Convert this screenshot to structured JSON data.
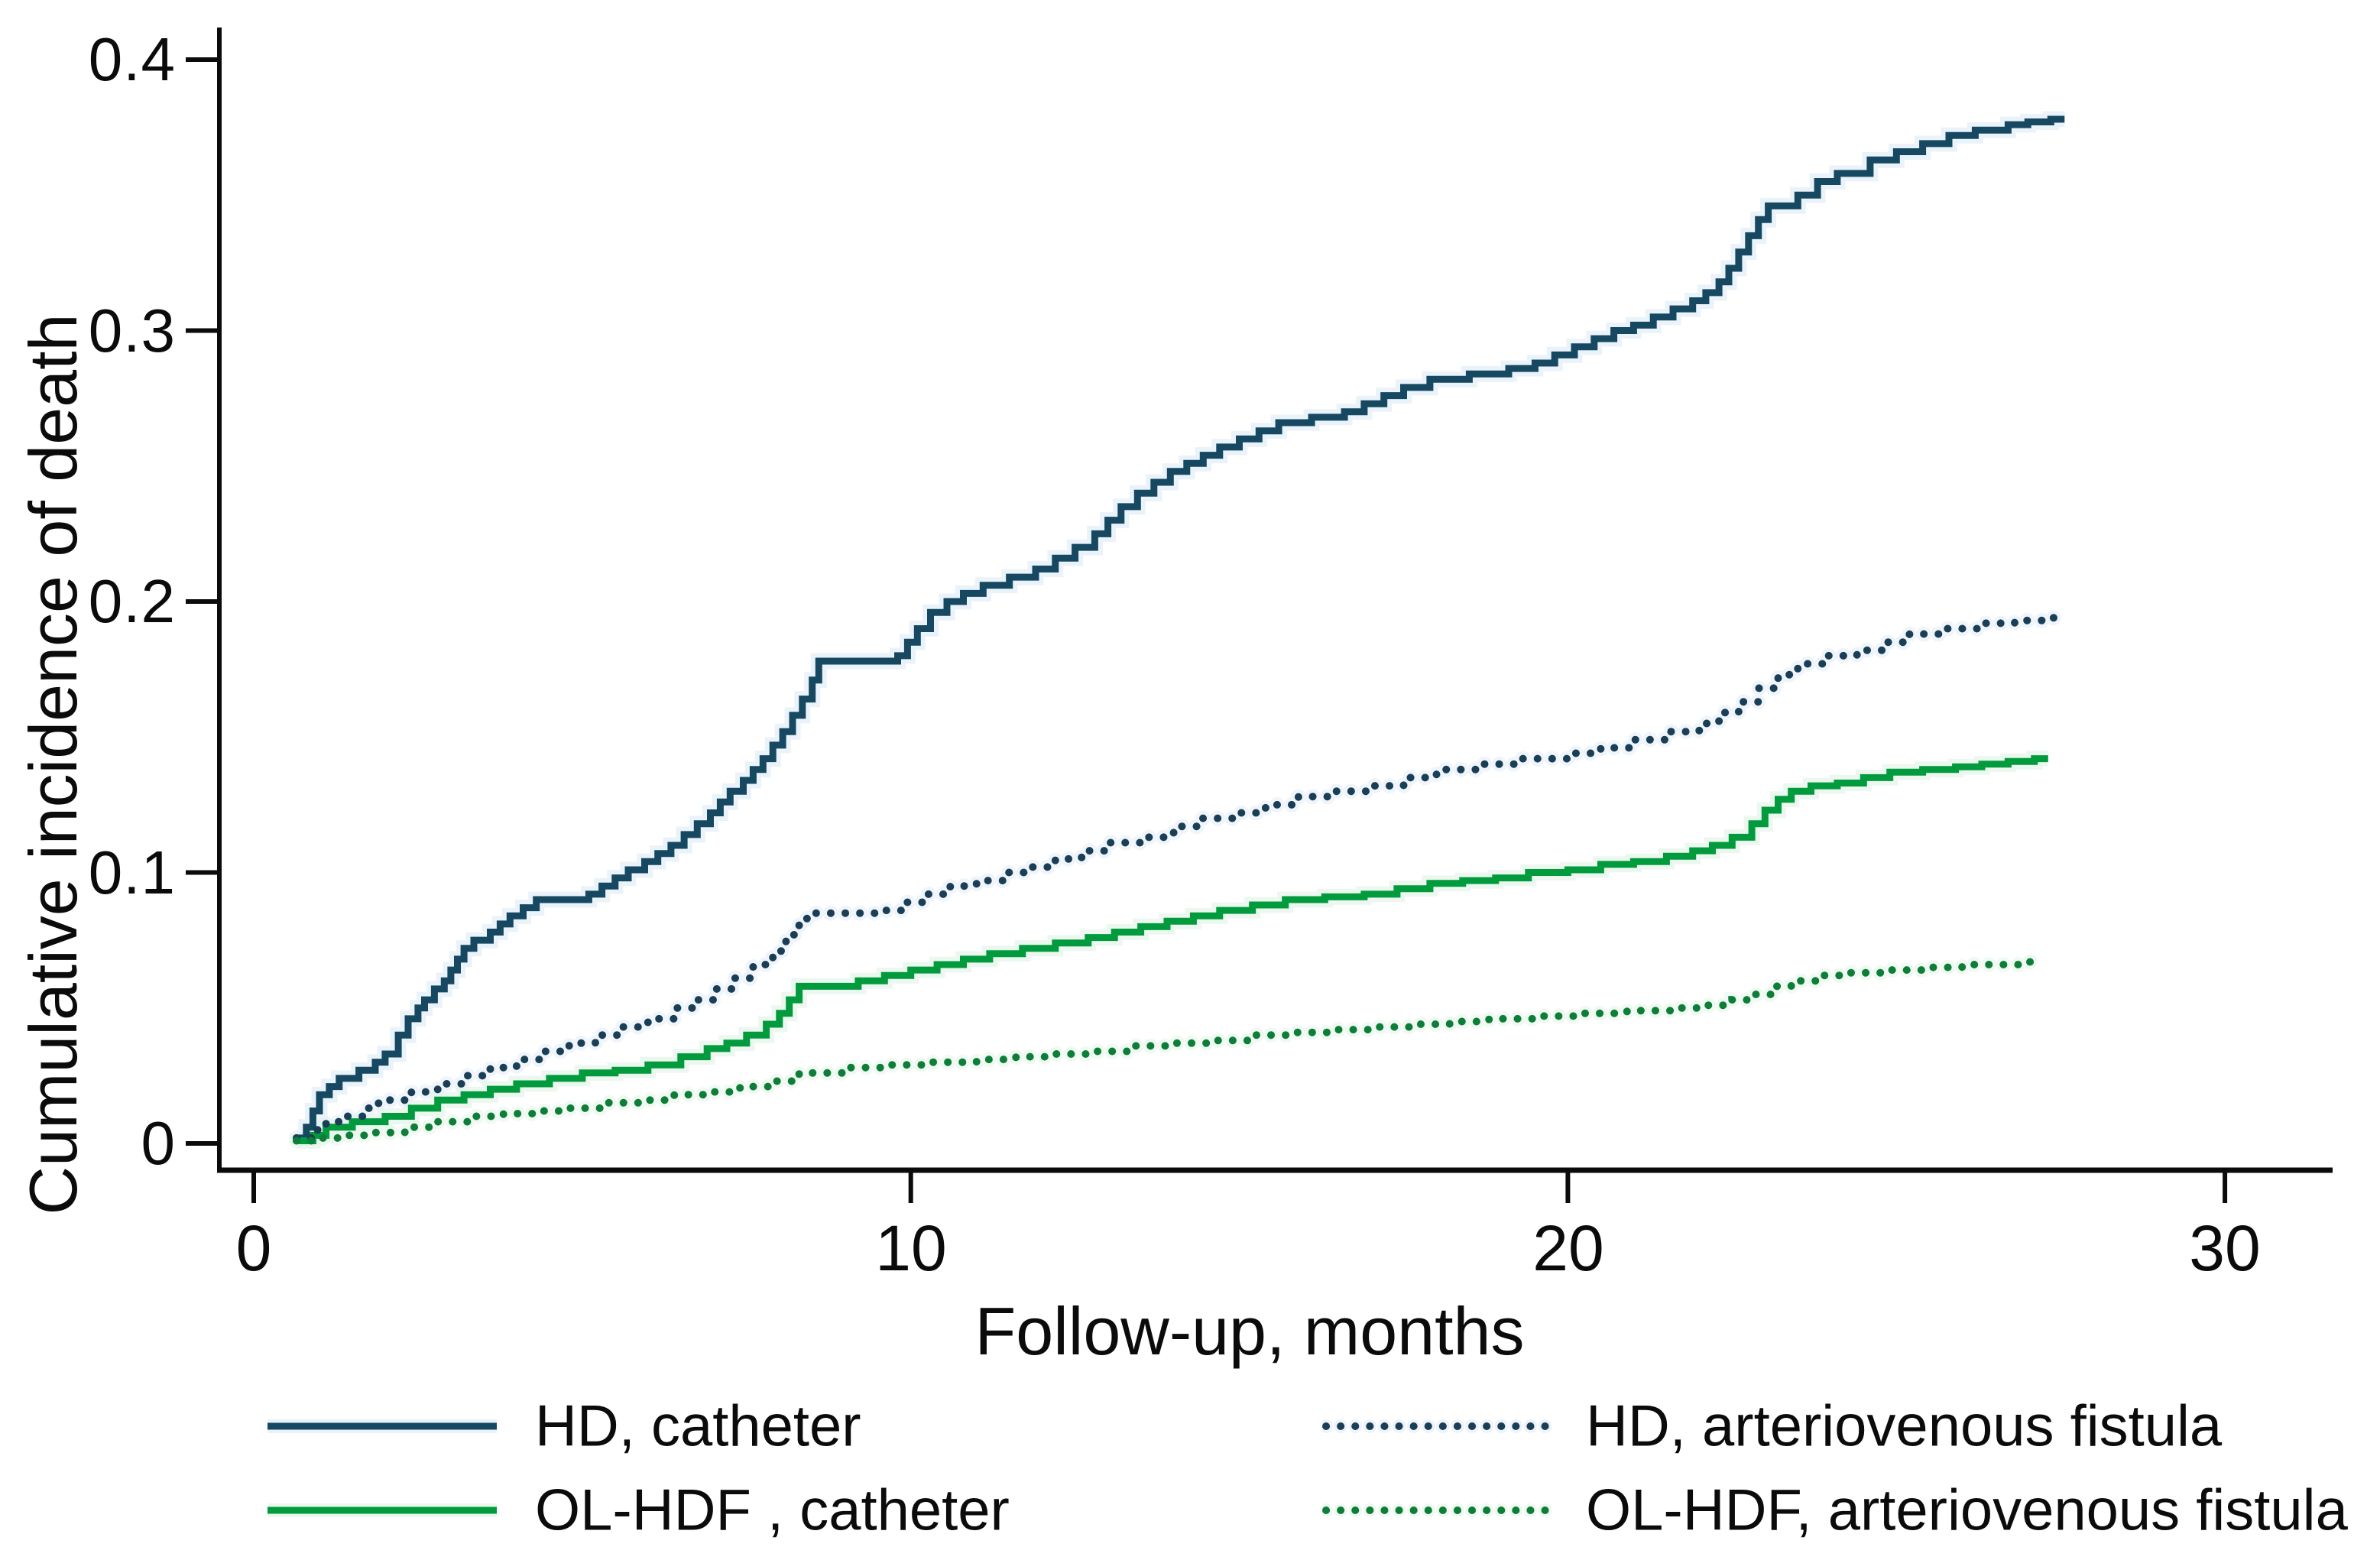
{
  "chart_data": {
    "type": "line",
    "line_shape": "step-after",
    "title": "",
    "xlabel": "Follow-up, months",
    "ylabel": "Cumulative incidence of death",
    "xlim": [
      0,
      30
    ],
    "ylim": [
      0,
      0.4
    ],
    "x_ticks": [
      0,
      10,
      20,
      30
    ],
    "x_tick_labels": [
      "0",
      "10",
      "20",
      "30"
    ],
    "y_ticks": [
      0,
      0.1,
      0.2,
      0.3,
      0.4
    ],
    "y_tick_labels": [
      "0",
      "0.1",
      "0.2",
      "0.3",
      "0.4"
    ],
    "grid": false,
    "legend_position": "bottom",
    "series": [
      {
        "name": "HD, catheter",
        "style": "solid",
        "color": "#174862",
        "halo": "#d8eaf4",
        "points": [
          [
            0.65,
            0.002
          ],
          [
            0.8,
            0.006
          ],
          [
            0.9,
            0.012
          ],
          [
            1.0,
            0.018
          ],
          [
            1.15,
            0.021
          ],
          [
            1.3,
            0.024
          ],
          [
            1.6,
            0.027
          ],
          [
            1.85,
            0.03
          ],
          [
            2.0,
            0.033
          ],
          [
            2.2,
            0.04
          ],
          [
            2.35,
            0.046
          ],
          [
            2.5,
            0.05
          ],
          [
            2.6,
            0.053
          ],
          [
            2.75,
            0.057
          ],
          [
            2.9,
            0.06
          ],
          [
            3.0,
            0.064
          ],
          [
            3.1,
            0.068
          ],
          [
            3.2,
            0.072
          ],
          [
            3.35,
            0.075
          ],
          [
            3.6,
            0.078
          ],
          [
            3.75,
            0.081
          ],
          [
            3.9,
            0.084
          ],
          [
            4.1,
            0.087
          ],
          [
            4.3,
            0.09
          ],
          [
            5.1,
            0.092
          ],
          [
            5.3,
            0.095
          ],
          [
            5.5,
            0.098
          ],
          [
            5.7,
            0.101
          ],
          [
            5.95,
            0.104
          ],
          [
            6.15,
            0.107
          ],
          [
            6.35,
            0.11
          ],
          [
            6.55,
            0.114
          ],
          [
            6.75,
            0.118
          ],
          [
            6.95,
            0.122
          ],
          [
            7.1,
            0.126
          ],
          [
            7.25,
            0.13
          ],
          [
            7.45,
            0.134
          ],
          [
            7.6,
            0.138
          ],
          [
            7.75,
            0.142
          ],
          [
            7.9,
            0.147
          ],
          [
            8.05,
            0.152
          ],
          [
            8.2,
            0.158
          ],
          [
            8.35,
            0.164
          ],
          [
            8.5,
            0.171
          ],
          [
            8.6,
            0.178
          ],
          [
            9.8,
            0.18
          ],
          [
            9.95,
            0.185
          ],
          [
            10.1,
            0.19
          ],
          [
            10.3,
            0.196
          ],
          [
            10.55,
            0.2
          ],
          [
            10.8,
            0.203
          ],
          [
            11.1,
            0.206
          ],
          [
            11.5,
            0.209
          ],
          [
            11.9,
            0.212
          ],
          [
            12.2,
            0.216
          ],
          [
            12.5,
            0.22
          ],
          [
            12.8,
            0.225
          ],
          [
            13.0,
            0.23
          ],
          [
            13.2,
            0.235
          ],
          [
            13.45,
            0.24
          ],
          [
            13.7,
            0.244
          ],
          [
            13.95,
            0.248
          ],
          [
            14.2,
            0.251
          ],
          [
            14.45,
            0.254
          ],
          [
            14.7,
            0.257
          ],
          [
            15.0,
            0.26
          ],
          [
            15.3,
            0.263
          ],
          [
            15.6,
            0.266
          ],
          [
            16.1,
            0.268
          ],
          [
            16.6,
            0.27
          ],
          [
            16.9,
            0.273
          ],
          [
            17.2,
            0.276
          ],
          [
            17.5,
            0.279
          ],
          [
            17.9,
            0.282
          ],
          [
            18.5,
            0.284
          ],
          [
            19.1,
            0.286
          ],
          [
            19.5,
            0.288
          ],
          [
            19.8,
            0.291
          ],
          [
            20.1,
            0.294
          ],
          [
            20.4,
            0.297
          ],
          [
            20.7,
            0.3
          ],
          [
            21.0,
            0.302
          ],
          [
            21.3,
            0.305
          ],
          [
            21.6,
            0.308
          ],
          [
            21.9,
            0.311
          ],
          [
            22.1,
            0.314
          ],
          [
            22.3,
            0.318
          ],
          [
            22.45,
            0.323
          ],
          [
            22.6,
            0.329
          ],
          [
            22.75,
            0.335
          ],
          [
            22.9,
            0.341
          ],
          [
            23.05,
            0.346
          ],
          [
            23.5,
            0.35
          ],
          [
            23.8,
            0.355
          ],
          [
            24.1,
            0.358
          ],
          [
            24.6,
            0.363
          ],
          [
            25.0,
            0.366
          ],
          [
            25.4,
            0.369
          ],
          [
            25.8,
            0.372
          ],
          [
            26.2,
            0.374
          ],
          [
            26.7,
            0.376
          ],
          [
            27.0,
            0.377
          ],
          [
            27.35,
            0.378
          ]
        ]
      },
      {
        "name": "OL-HDF , catheter",
        "style": "solid",
        "color": "#019b3e",
        "halo": "#ddf3e2",
        "points": [
          [
            0.65,
            0.001
          ],
          [
            0.9,
            0.003
          ],
          [
            1.1,
            0.006
          ],
          [
            1.5,
            0.008
          ],
          [
            2.0,
            0.01
          ],
          [
            2.4,
            0.013
          ],
          [
            2.8,
            0.016
          ],
          [
            3.2,
            0.018
          ],
          [
            3.6,
            0.02
          ],
          [
            4.0,
            0.022
          ],
          [
            4.5,
            0.024
          ],
          [
            5.0,
            0.026
          ],
          [
            5.5,
            0.027
          ],
          [
            6.0,
            0.029
          ],
          [
            6.5,
            0.032
          ],
          [
            6.9,
            0.035
          ],
          [
            7.2,
            0.037
          ],
          [
            7.5,
            0.04
          ],
          [
            7.8,
            0.044
          ],
          [
            8.0,
            0.048
          ],
          [
            8.15,
            0.053
          ],
          [
            8.3,
            0.058
          ],
          [
            9.2,
            0.06
          ],
          [
            9.6,
            0.062
          ],
          [
            10.0,
            0.064
          ],
          [
            10.4,
            0.066
          ],
          [
            10.8,
            0.068
          ],
          [
            11.2,
            0.07
          ],
          [
            11.7,
            0.072
          ],
          [
            12.2,
            0.074
          ],
          [
            12.7,
            0.076
          ],
          [
            13.1,
            0.078
          ],
          [
            13.5,
            0.08
          ],
          [
            13.9,
            0.082
          ],
          [
            14.3,
            0.084
          ],
          [
            14.7,
            0.086
          ],
          [
            15.2,
            0.088
          ],
          [
            15.7,
            0.09
          ],
          [
            16.3,
            0.091
          ],
          [
            16.9,
            0.092
          ],
          [
            17.4,
            0.094
          ],
          [
            17.9,
            0.096
          ],
          [
            18.4,
            0.097
          ],
          [
            18.9,
            0.098
          ],
          [
            19.4,
            0.1
          ],
          [
            20.0,
            0.101
          ],
          [
            20.5,
            0.103
          ],
          [
            21.0,
            0.104
          ],
          [
            21.5,
            0.106
          ],
          [
            21.9,
            0.108
          ],
          [
            22.2,
            0.11
          ],
          [
            22.5,
            0.113
          ],
          [
            22.8,
            0.118
          ],
          [
            23.0,
            0.123
          ],
          [
            23.2,
            0.127
          ],
          [
            23.4,
            0.13
          ],
          [
            23.7,
            0.132
          ],
          [
            24.1,
            0.133
          ],
          [
            24.5,
            0.135
          ],
          [
            24.9,
            0.137
          ],
          [
            25.4,
            0.138
          ],
          [
            25.9,
            0.139
          ],
          [
            26.3,
            0.14
          ],
          [
            26.7,
            0.141
          ],
          [
            27.1,
            0.142
          ]
        ]
      },
      {
        "name": "HD, arteriovenous fistula",
        "style": "dotted",
        "color": "#1b3e57",
        "halo": "#e2edf5",
        "points": [
          [
            0.65,
            0.002
          ],
          [
            0.9,
            0.005
          ],
          [
            1.1,
            0.008
          ],
          [
            1.4,
            0.01
          ],
          [
            1.7,
            0.013
          ],
          [
            1.9,
            0.016
          ],
          [
            2.4,
            0.019
          ],
          [
            2.8,
            0.022
          ],
          [
            3.2,
            0.025
          ],
          [
            3.6,
            0.028
          ],
          [
            4.0,
            0.031
          ],
          [
            4.4,
            0.034
          ],
          [
            4.8,
            0.037
          ],
          [
            5.2,
            0.04
          ],
          [
            5.6,
            0.043
          ],
          [
            6.0,
            0.046
          ],
          [
            6.4,
            0.05
          ],
          [
            6.7,
            0.053
          ],
          [
            7.0,
            0.057
          ],
          [
            7.3,
            0.061
          ],
          [
            7.6,
            0.066
          ],
          [
            7.9,
            0.071
          ],
          [
            8.1,
            0.077
          ],
          [
            8.3,
            0.083
          ],
          [
            8.5,
            0.085
          ],
          [
            9.6,
            0.086
          ],
          [
            9.9,
            0.089
          ],
          [
            10.2,
            0.092
          ],
          [
            10.6,
            0.095
          ],
          [
            11.0,
            0.097
          ],
          [
            11.4,
            0.1
          ],
          [
            11.8,
            0.102
          ],
          [
            12.2,
            0.105
          ],
          [
            12.6,
            0.108
          ],
          [
            13.0,
            0.111
          ],
          [
            13.5,
            0.113
          ],
          [
            14.0,
            0.117
          ],
          [
            14.4,
            0.12
          ],
          [
            14.9,
            0.122
          ],
          [
            15.4,
            0.125
          ],
          [
            15.9,
            0.128
          ],
          [
            16.4,
            0.13
          ],
          [
            17.0,
            0.132
          ],
          [
            17.5,
            0.135
          ],
          [
            18.0,
            0.138
          ],
          [
            18.6,
            0.14
          ],
          [
            19.3,
            0.142
          ],
          [
            20.0,
            0.144
          ],
          [
            20.5,
            0.146
          ],
          [
            21.0,
            0.149
          ],
          [
            21.5,
            0.152
          ],
          [
            22.0,
            0.155
          ],
          [
            22.3,
            0.159
          ],
          [
            22.6,
            0.163
          ],
          [
            22.9,
            0.168
          ],
          [
            23.2,
            0.173
          ],
          [
            23.5,
            0.177
          ],
          [
            23.9,
            0.18
          ],
          [
            24.4,
            0.182
          ],
          [
            24.8,
            0.185
          ],
          [
            25.2,
            0.188
          ],
          [
            25.7,
            0.19
          ],
          [
            26.3,
            0.192
          ],
          [
            26.8,
            0.193
          ],
          [
            27.3,
            0.194
          ]
        ]
      },
      {
        "name": "OL-HDF, arteriovenous fistula",
        "style": "dotted",
        "color": "#0d7e38",
        "halo": "#e4f5e8",
        "points": [
          [
            0.65,
            0.001
          ],
          [
            1.0,
            0.002
          ],
          [
            1.4,
            0.003
          ],
          [
            1.8,
            0.004
          ],
          [
            2.3,
            0.006
          ],
          [
            2.8,
            0.008
          ],
          [
            3.3,
            0.01
          ],
          [
            3.8,
            0.011
          ],
          [
            4.3,
            0.012
          ],
          [
            4.8,
            0.013
          ],
          [
            5.3,
            0.015
          ],
          [
            5.9,
            0.016
          ],
          [
            6.4,
            0.018
          ],
          [
            6.9,
            0.019
          ],
          [
            7.4,
            0.021
          ],
          [
            7.9,
            0.023
          ],
          [
            8.3,
            0.026
          ],
          [
            9.0,
            0.028
          ],
          [
            9.6,
            0.029
          ],
          [
            10.3,
            0.03
          ],
          [
            11.0,
            0.031
          ],
          [
            11.6,
            0.032
          ],
          [
            12.2,
            0.033
          ],
          [
            12.8,
            0.034
          ],
          [
            13.4,
            0.036
          ],
          [
            14.0,
            0.037
          ],
          [
            14.6,
            0.038
          ],
          [
            15.2,
            0.04
          ],
          [
            15.8,
            0.041
          ],
          [
            16.4,
            0.042
          ],
          [
            17.0,
            0.043
          ],
          [
            17.6,
            0.044
          ],
          [
            18.2,
            0.045
          ],
          [
            18.8,
            0.046
          ],
          [
            19.5,
            0.047
          ],
          [
            20.2,
            0.048
          ],
          [
            20.9,
            0.049
          ],
          [
            21.6,
            0.05
          ],
          [
            22.1,
            0.051
          ],
          [
            22.5,
            0.053
          ],
          [
            22.8,
            0.055
          ],
          [
            23.1,
            0.058
          ],
          [
            23.4,
            0.06
          ],
          [
            23.8,
            0.062
          ],
          [
            24.3,
            0.063
          ],
          [
            24.8,
            0.064
          ],
          [
            25.4,
            0.065
          ],
          [
            26.0,
            0.066
          ],
          [
            26.6,
            0.066
          ],
          [
            27.0,
            0.067
          ]
        ]
      }
    ]
  },
  "axis_color": "#0b0b0b"
}
